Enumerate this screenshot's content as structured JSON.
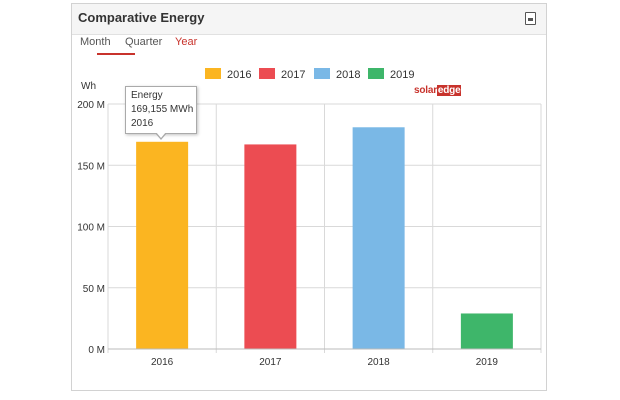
{
  "panel": {
    "title": "Comparative Energy",
    "export_icon": "export-csv-icon"
  },
  "tabs": [
    {
      "label": "Month",
      "active": false
    },
    {
      "label": "Quarter",
      "active": false
    },
    {
      "label": "Year",
      "active": true
    }
  ],
  "logo": {
    "part1": "solar",
    "part2": "edge"
  },
  "tooltip": {
    "line1": "Energy",
    "line2": "169,155 MWh",
    "line3": "2016"
  },
  "chart_data": {
    "type": "bar",
    "ylabel": "Wh",
    "categories": [
      "2016",
      "2017",
      "2018",
      "2019"
    ],
    "values": [
      169155000,
      167000000,
      181000000,
      29000000
    ],
    "colors": [
      "#fbb521",
      "#ec4c52",
      "#7ab8e6",
      "#3eb66a"
    ],
    "legend": [
      {
        "name": "2016",
        "color": "#fbb521"
      },
      {
        "name": "2017",
        "color": "#ec4c52"
      },
      {
        "name": "2018",
        "color": "#7ab8e6"
      },
      {
        "name": "2019",
        "color": "#3eb66a"
      }
    ],
    "legend_position": "top",
    "ylim": [
      0,
      200000000
    ],
    "yticks": [
      0,
      50000000,
      100000000,
      150000000,
      200000000
    ],
    "ytick_labels": [
      "0 M",
      "50 M",
      "100 M",
      "150 M",
      "200 M"
    ],
    "grid": true
  }
}
